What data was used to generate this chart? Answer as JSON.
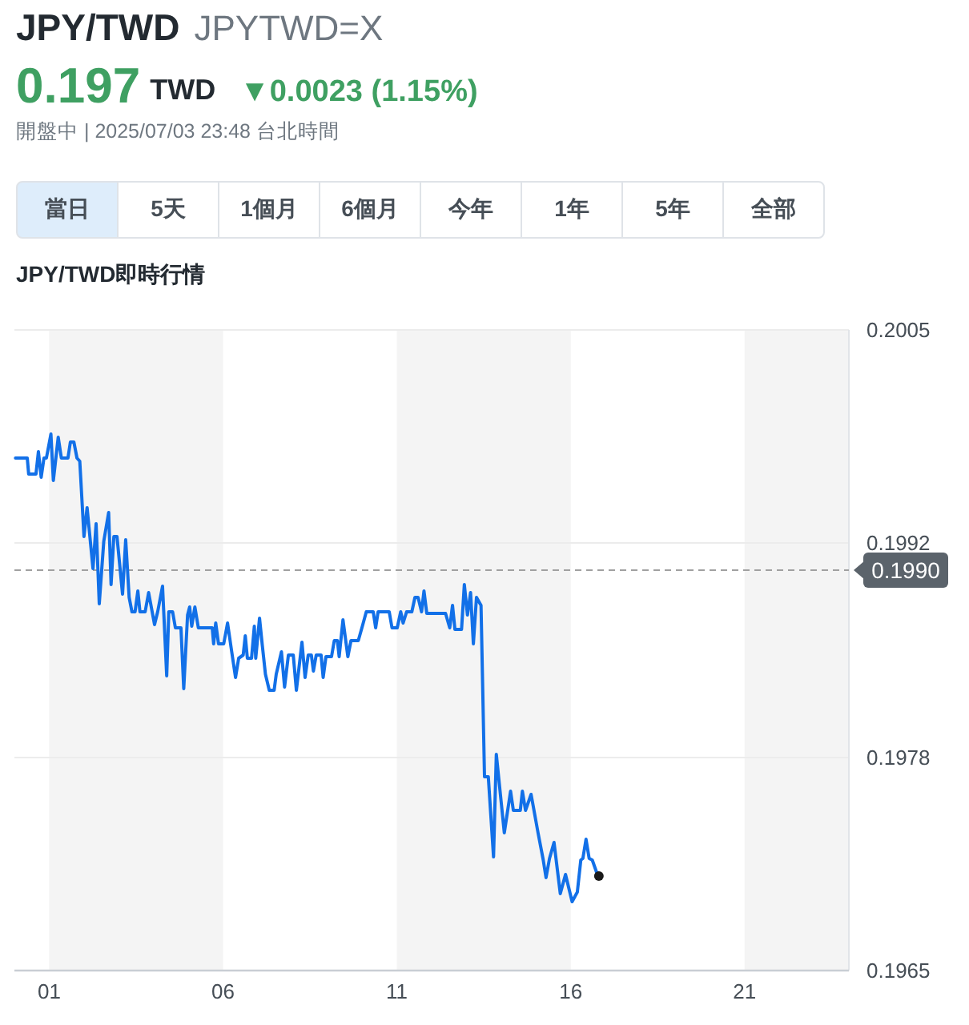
{
  "chart_data": [
    {
      "type": "other",
      "title": "JPY/TWD",
      "subtitle": "JPYTWD=X",
      "annotations": [
        "0.197",
        "TWD",
        "▼0.0023 (1.15%)",
        "開盤中 | 2025/07/03 23:48 台北時間",
        "當日",
        "5天",
        "1個月",
        "6個月",
        "今年",
        "1年",
        "5年",
        "全部"
      ]
    },
    {
      "type": "line",
      "title": "JPY/TWD即時行情",
      "x": [
        0.03,
        0.37,
        0.41,
        0.62,
        0.69,
        0.77,
        0.85,
        0.92,
        1.05,
        1.12,
        1.26,
        1.35,
        1.54,
        1.61,
        1.71,
        1.8,
        1.88,
        1.95,
        2.0,
        2.09,
        2.26,
        2.35,
        2.44,
        2.57,
        2.71,
        2.78,
        2.86,
        2.95,
        3.11,
        3.2,
        3.3,
        3.38,
        3.47,
        3.55,
        3.61,
        3.76,
        3.86,
        4.03,
        4.12,
        4.26,
        4.38,
        4.44,
        4.55,
        4.63,
        4.79,
        4.87,
        4.98,
        5.04,
        5.1,
        5.19,
        5.29,
        5.69,
        5.73,
        5.79,
        5.87,
        6.02,
        6.13,
        6.25,
        6.36,
        6.45,
        6.58,
        6.64,
        6.7,
        6.82,
        6.9,
        6.94,
        7.05,
        7.13,
        7.22,
        7.33,
        7.47,
        7.53,
        7.68,
        7.77,
        7.88,
        8.02,
        8.11,
        8.27,
        8.36,
        8.45,
        8.54,
        8.6,
        8.68,
        8.82,
        8.88,
        8.96,
        9.12,
        9.2,
        9.29,
        9.34,
        9.45,
        9.59,
        9.68,
        9.89,
        10.02,
        10.12,
        10.32,
        10.39,
        10.46,
        10.78,
        10.86,
        11.01,
        11.11,
        11.18,
        11.28,
        11.43,
        11.52,
        11.61,
        11.71,
        11.78,
        11.86,
        12.4,
        12.52,
        12.6,
        12.67,
        12.86,
        12.94,
        13.03,
        13.12,
        13.2,
        13.29,
        13.42,
        13.52,
        13.63,
        13.78,
        13.86,
        14.09,
        14.27,
        14.35,
        14.55,
        14.61,
        14.7,
        14.86,
        15.06,
        15.21,
        15.29,
        15.39,
        15.52,
        15.7,
        15.85,
        16.04,
        16.19,
        16.29,
        16.35,
        16.44,
        16.53,
        16.62,
        16.75,
        16.81
      ],
      "series": [
        {
          "color": "#1270e8",
          "values": [
            0.1997,
            0.1997,
            0.1996,
            0.1996,
            0.19974,
            0.19958,
            0.1997,
            0.1997,
            0.19985,
            0.19956,
            0.19983,
            0.1997,
            0.1997,
            0.1998,
            0.1998,
            0.1997,
            0.19968,
            0.19941,
            0.19921,
            0.19939,
            0.19901,
            0.19929,
            0.19879,
            0.19918,
            0.19936,
            0.19891,
            0.19921,
            0.19921,
            0.19885,
            0.19919,
            0.19883,
            0.19874,
            0.19874,
            0.19887,
            0.19874,
            0.19874,
            0.19886,
            0.19866,
            0.19874,
            0.1989,
            0.19834,
            0.19874,
            0.19874,
            0.19864,
            0.19864,
            0.19826,
            0.19872,
            0.19877,
            0.19865,
            0.19877,
            0.19864,
            0.19864,
            0.19854,
            0.19867,
            0.19854,
            0.19854,
            0.19867,
            0.19849,
            0.19833,
            0.19845,
            0.19847,
            0.19859,
            0.19845,
            0.19845,
            0.19865,
            0.19845,
            0.1987,
            0.19853,
            0.19835,
            0.19825,
            0.19825,
            0.19835,
            0.19849,
            0.19827,
            0.19847,
            0.19847,
            0.19825,
            0.19855,
            0.19833,
            0.19847,
            0.19847,
            0.19837,
            0.19847,
            0.19847,
            0.19833,
            0.19846,
            0.19846,
            0.19856,
            0.19856,
            0.19846,
            0.19869,
            0.19846,
            0.19856,
            0.19856,
            0.19866,
            0.19874,
            0.19874,
            0.19864,
            0.19874,
            0.19874,
            0.19864,
            0.19864,
            0.19874,
            0.19867,
            0.19874,
            0.19874,
            0.19883,
            0.19883,
            0.19874,
            0.19887,
            0.19873,
            0.19873,
            0.19864,
            0.19878,
            0.19863,
            0.19863,
            0.19891,
            0.19872,
            0.19886,
            0.19854,
            0.19883,
            0.19878,
            0.19771,
            0.19771,
            0.19721,
            0.19785,
            0.19736,
            0.19762,
            0.1975,
            0.1975,
            0.19762,
            0.1975,
            0.1976,
            0.19736,
            0.19719,
            0.19708,
            0.1972,
            0.1973,
            0.19698,
            0.1971,
            0.19693,
            0.19699,
            0.19719,
            0.1972,
            0.19732,
            0.1972,
            0.19719,
            0.19711,
            0.19709
          ]
        },
        {
          "type": "scatter",
          "color": "#1a1a1a",
          "x": [
            16.81
          ],
          "values": [
            0.19709
          ]
        }
      ],
      "xlim": [
        0,
        24
      ],
      "ylim": [
        0.1965,
        0.2005
      ],
      "xticks": [
        {
          "value": 1,
          "label": "01"
        },
        {
          "value": 6,
          "label": "06"
        },
        {
          "value": 11,
          "label": "11"
        },
        {
          "value": 16,
          "label": "16"
        },
        {
          "value": 21,
          "label": "21"
        }
      ],
      "yticks": [
        0.1965,
        {
          "value": 0.19783,
          "label": "0.1978"
        },
        {
          "value": 0.19917,
          "label": "0.1992"
        },
        0.2005
      ],
      "grid": "y",
      "ref_lines": [
        {
          "axis": "y",
          "value": 0.199,
          "label": "0.1990",
          "color": "#a0a0a0",
          "line_style": "dashed"
        }
      ],
      "bands": [
        {
          "axis": "x",
          "from": 1,
          "to": 6,
          "color": "#f4f4f4"
        },
        {
          "axis": "x",
          "from": 11,
          "to": 16,
          "color": "#f4f4f4"
        },
        {
          "axis": "x",
          "from": 21,
          "to": 24,
          "color": "#f4f4f4"
        }
      ]
    }
  ]
}
